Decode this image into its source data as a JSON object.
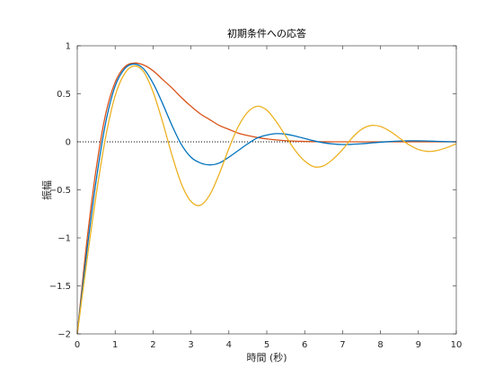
{
  "chart_data": {
    "type": "line",
    "title": "初期条件への応答",
    "xlabel": "時間 (秒)",
    "ylabel": "振幅",
    "xlim": [
      0,
      10
    ],
    "ylim": [
      -2,
      1
    ],
    "xticks": [
      0,
      1,
      2,
      3,
      4,
      5,
      6,
      7,
      8,
      9,
      10
    ],
    "xtick_labels": [
      "0",
      "1",
      "2",
      "3",
      "4",
      "5",
      "6",
      "7",
      "8",
      "9",
      "10"
    ],
    "yticks": [
      1,
      0.5,
      0,
      -0.5,
      -1,
      -1.5,
      -2
    ],
    "ytick_labels": [
      "1",
      "0.5",
      "0",
      "−0.5",
      "−1",
      "−1.5",
      "−2"
    ],
    "grid": false,
    "reference_line": {
      "y": 0,
      "style": "dotted",
      "color": "#000000"
    },
    "x": [
      0,
      0.25,
      0.5,
      0.75,
      1,
      1.25,
      1.5,
      1.75,
      2,
      2.25,
      2.5,
      2.75,
      3,
      3.25,
      3.5,
      3.75,
      4,
      4.25,
      4.5,
      4.75,
      5,
      5.25,
      5.5,
      5.75,
      6,
      6.25,
      6.5,
      6.75,
      7,
      7.25,
      7.5,
      7.75,
      8,
      8.25,
      8.5,
      8.75,
      9,
      9.25,
      9.5,
      9.75,
      10
    ],
    "series": [
      {
        "color": "#D95319",
        "values": [
          -2,
          -1.05,
          -0.28,
          0.29,
          0.62,
          0.78,
          0.82,
          0.8,
          0.74,
          0.65,
          0.56,
          0.46,
          0.37,
          0.29,
          0.23,
          0.17,
          0.13,
          0.09,
          0.065,
          0.045,
          0.03,
          0.02,
          0.012,
          0.007,
          0.004,
          0.002,
          0.001,
          0,
          0,
          0,
          0,
          0,
          0,
          0,
          0,
          0,
          0,
          0,
          0,
          0,
          0
        ]
      },
      {
        "color": "#0072BD",
        "values": [
          -2,
          -1.15,
          -0.4,
          0.2,
          0.58,
          0.76,
          0.81,
          0.76,
          0.61,
          0.4,
          0.17,
          -0.03,
          -0.16,
          -0.22,
          -0.24,
          -0.22,
          -0.16,
          -0.09,
          -0.02,
          0.04,
          0.07,
          0.085,
          0.08,
          0.06,
          0.035,
          0.01,
          -0.01,
          -0.022,
          -0.028,
          -0.026,
          -0.02,
          -0.012,
          -0.004,
          0.003,
          0.008,
          0.01,
          0.01,
          0.008,
          0.005,
          0.002,
          0
        ]
      },
      {
        "color": "#EDB120",
        "values": [
          -2,
          -1.25,
          -0.55,
          0.05,
          0.48,
          0.71,
          0.79,
          0.73,
          0.52,
          0.21,
          -0.14,
          -0.44,
          -0.62,
          -0.66,
          -0.55,
          -0.33,
          -0.07,
          0.16,
          0.31,
          0.37,
          0.33,
          0.21,
          0.06,
          -0.09,
          -0.2,
          -0.26,
          -0.25,
          -0.18,
          -0.08,
          0.04,
          0.13,
          0.17,
          0.16,
          0.11,
          0.04,
          -0.03,
          -0.08,
          -0.1,
          -0.09,
          -0.06,
          -0.02
        ]
      }
    ]
  }
}
